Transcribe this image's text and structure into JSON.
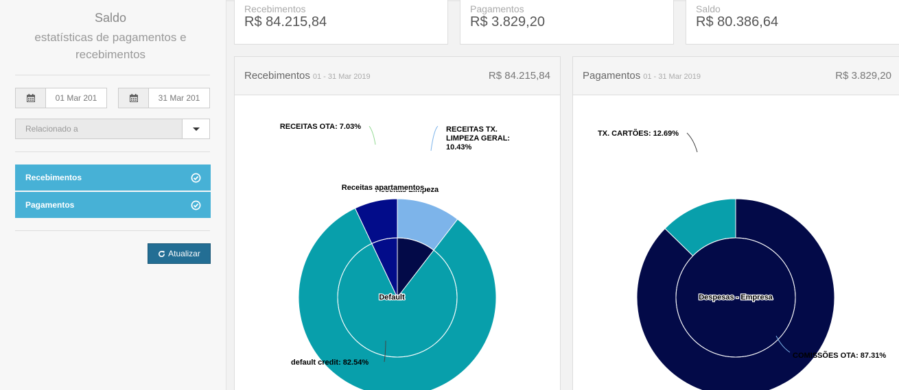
{
  "sidebar": {
    "title": "Saldo",
    "subtitle": "estatísticas de pagamentos e recebimentos",
    "date_from": "01 Mar 201",
    "date_to": "31 Mar 201",
    "related_placeholder": "Relacionado a",
    "toggles": [
      {
        "label": "Recebimentos"
      },
      {
        "label": "Pagamentos"
      }
    ],
    "update_label": "Atualizar"
  },
  "summary": [
    {
      "label": "Recebimentos",
      "value": "R$ 84.215,84"
    },
    {
      "label": "Pagamentos",
      "value": "R$ 3.829,20"
    },
    {
      "label": "Saldo",
      "value": "R$ 80.386,64"
    }
  ],
  "panels": [
    {
      "title": "Recebimentos",
      "date_range": "01 - 31 Mar 2019",
      "total": "R$ 84.215,84"
    },
    {
      "title": "Pagamentos",
      "date_range": "01 - 31 Mar 2019",
      "total": "R$ 3.829,20"
    }
  ],
  "colors": {
    "accent": "#47b1d6",
    "button": "#236e94",
    "teal": "#089fab",
    "navy": "#030a48",
    "blue": "#020c8a",
    "lightblue": "#7db4ea"
  },
  "chart_data": [
    {
      "type": "pie",
      "subtype": "sunburst",
      "outer": [
        {
          "label": "RECEITAS TX. LIMPEZA GERAL",
          "value": 10.43,
          "text": "RECEITAS TX. LIMPEZA GERAL: 10.43%",
          "color": "#7db4ea"
        },
        {
          "label": "default credit",
          "value": 82.54,
          "text": "default credit: 82.54%",
          "color": "#089fab"
        },
        {
          "label": "RECEITAS OTA",
          "value": 7.03,
          "text": "RECEITAS OTA: 7.03%",
          "color": "#020c8a"
        }
      ],
      "inner": [
        {
          "label": "Receitas Limpeza",
          "value": 10.43,
          "color": "#030a48"
        },
        {
          "label": "Default",
          "value": 82.54,
          "color": "#089fab"
        },
        {
          "label": "Receitas apartamentos",
          "value": 7.03,
          "color": "#020c8a"
        }
      ]
    },
    {
      "type": "pie",
      "subtype": "sunburst",
      "outer": [
        {
          "label": "COMISSÕES OTA",
          "value": 87.31,
          "text": "COMISSÕES OTA: 87.31%",
          "color": "#030a48"
        },
        {
          "label": "TX. CARTÕES",
          "value": 12.69,
          "text": "TX. CARTÕES: 12.69%",
          "color": "#089fab"
        }
      ],
      "inner": [
        {
          "label": "Despesas - Empresa",
          "value": 100,
          "color": "#030a48"
        }
      ]
    }
  ]
}
